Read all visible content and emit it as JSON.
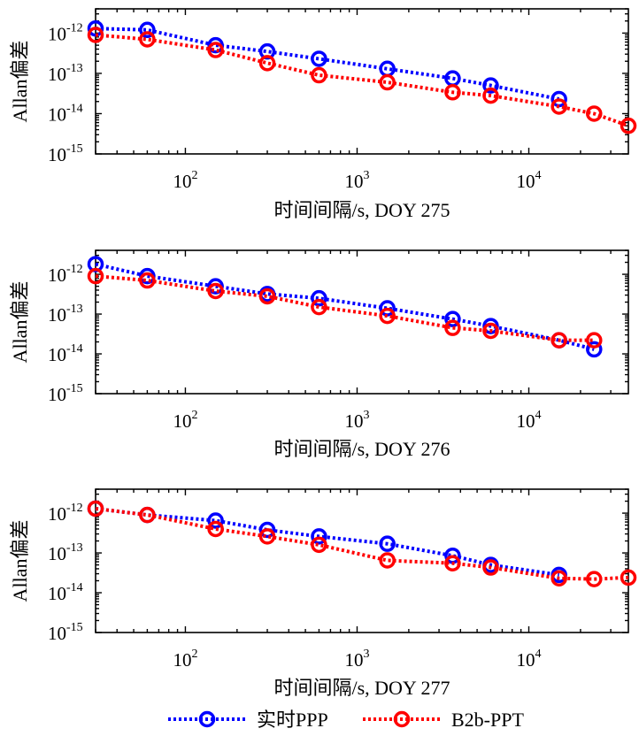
{
  "chart_data": [
    {
      "type": "line",
      "xlabel": "时间间隔/s, DOY 275",
      "ylabel": "Allan偏差",
      "x_scale": "log",
      "y_scale": "log",
      "xlim": [
        30,
        38000
      ],
      "ylim": [
        1e-15,
        4e-12
      ],
      "x_ticks": [
        100,
        1000,
        10000
      ],
      "y_ticks": [
        1e-12,
        1e-13,
        1e-14,
        1e-15
      ],
      "series": [
        {
          "name": "实时PPP",
          "color": "#0000ff",
          "x": [
            30,
            60,
            150,
            300,
            600,
            1500,
            3600,
            6000,
            15000
          ],
          "y": [
            1.3e-12,
            1.2e-12,
            5e-13,
            3.5e-13,
            2.3e-13,
            1.3e-13,
            7.5e-14,
            5e-14,
            2.3e-14
          ]
        },
        {
          "name": "B2b-PPT",
          "color": "#ff0000",
          "x": [
            30,
            60,
            150,
            300,
            600,
            1500,
            3600,
            6000,
            15000,
            24000,
            38000
          ],
          "y": [
            9e-13,
            7e-13,
            3.8e-13,
            1.8e-13,
            9e-14,
            6e-14,
            3.4e-14,
            2.8e-14,
            1.5e-14,
            1e-14,
            5e-15
          ]
        }
      ]
    },
    {
      "type": "line",
      "xlabel": "时间间隔/s, DOY 276",
      "ylabel": "Allan偏差",
      "x_scale": "log",
      "y_scale": "log",
      "xlim": [
        30,
        38000
      ],
      "ylim": [
        1e-15,
        4e-12
      ],
      "x_ticks": [
        100,
        1000,
        10000
      ],
      "y_ticks": [
        1e-12,
        1e-13,
        1e-14,
        1e-15
      ],
      "series": [
        {
          "name": "实时PPP",
          "color": "#0000ff",
          "x": [
            30,
            60,
            150,
            300,
            600,
            1500,
            3600,
            6000,
            15000,
            24000
          ],
          "y": [
            1.8e-12,
            9e-13,
            5e-13,
            3.2e-13,
            2.5e-13,
            1.4e-13,
            7.5e-14,
            5e-14,
            2.2e-14,
            1.3e-14
          ]
        },
        {
          "name": "B2b-PPT",
          "color": "#ff0000",
          "x": [
            30,
            60,
            150,
            300,
            600,
            1500,
            3600,
            6000,
            15000,
            24000
          ],
          "y": [
            9e-13,
            7e-13,
            3.8e-13,
            2.8e-13,
            1.5e-13,
            9e-14,
            4.5e-14,
            3.8e-14,
            2.2e-14,
            2.2e-14
          ]
        }
      ]
    },
    {
      "type": "line",
      "xlabel": "时间间隔/s, DOY 277",
      "ylabel": "Allan偏差",
      "x_scale": "log",
      "y_scale": "log",
      "xlim": [
        30,
        38000
      ],
      "ylim": [
        1e-15,
        4e-12
      ],
      "x_ticks": [
        100,
        1000,
        10000
      ],
      "y_ticks": [
        1e-12,
        1e-13,
        1e-14,
        1e-15
      ],
      "series": [
        {
          "name": "实时PPP",
          "color": "#0000ff",
          "x": [
            30,
            60,
            150,
            300,
            600,
            1500,
            3600,
            6000,
            15000
          ],
          "y": [
            1.3e-12,
            9e-13,
            6.5e-13,
            3.8e-13,
            2.6e-13,
            1.7e-13,
            8.5e-14,
            5e-14,
            2.8e-14
          ]
        },
        {
          "name": "B2b-PPT",
          "color": "#ff0000",
          "x": [
            30,
            60,
            150,
            300,
            600,
            1500,
            3600,
            6000,
            15000,
            24000,
            38000
          ],
          "y": [
            1.3e-12,
            9e-13,
            4e-13,
            2.6e-13,
            1.6e-13,
            6.5e-14,
            5.5e-14,
            4.3e-14,
            2.3e-14,
            2.2e-14,
            2.4e-14
          ]
        }
      ]
    }
  ],
  "legend": {
    "placement": "bottom",
    "entries": [
      {
        "label": "实时PPP",
        "color": "#0000ff"
      },
      {
        "label": "B2b-PPT",
        "color": "#ff0000"
      }
    ]
  }
}
